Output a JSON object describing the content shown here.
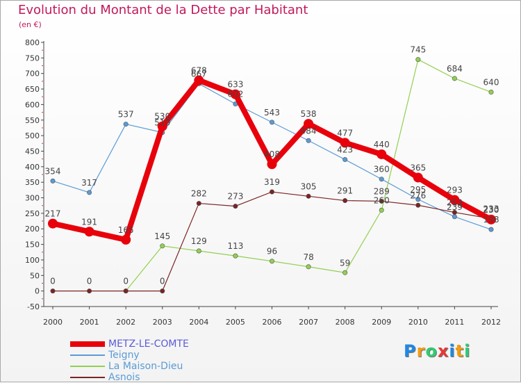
{
  "title": "Evolution du Montant de la Dette par Habitant",
  "subtitle": "(en €)",
  "logo": {
    "text": "Proxiti",
    "letters": [
      {
        "ch": "P",
        "color": "#1e88e5"
      },
      {
        "ch": "r",
        "color": "#f39c12"
      },
      {
        "ch": "o",
        "color": "#2ecc71"
      },
      {
        "ch": "x",
        "color": "#e53935"
      },
      {
        "ch": "i",
        "color": "#1e88e5"
      },
      {
        "ch": "t",
        "color": "#f39c12"
      },
      {
        "ch": "i",
        "color": "#2ecc71"
      }
    ]
  },
  "chart_data": {
    "type": "line",
    "title": "Evolution du Montant de la Dette par Habitant",
    "ylabel": "(en €)",
    "xlabel": "",
    "categories": [
      "2000",
      "2001",
      "2002",
      "2003",
      "2004",
      "2005",
      "2006",
      "2007",
      "2008",
      "2009",
      "2010",
      "2011",
      "2012"
    ],
    "ylim": [
      -50,
      800
    ],
    "ytick_step": 50,
    "grid": false,
    "legend_position": "bottom-left",
    "series": [
      {
        "name": "METZ-LE-COMTE",
        "color": "#e8000b",
        "emphasis": true,
        "values": [
          217,
          191,
          165,
          530,
          678,
          633,
          408,
          538,
          477,
          440,
          365,
          293,
          230
        ],
        "labels": [
          "217",
          "191",
          "165",
          "530",
          "678",
          "633",
          "408",
          "538",
          "477",
          "440",
          "365",
          "293",
          "230"
        ]
      },
      {
        "name": "Teigny",
        "color": "#5b9bd5",
        "values": [
          354,
          317,
          537,
          510,
          667,
          602,
          543,
          484,
          423,
          360,
          295,
          239,
          198
        ],
        "labels": [
          "354",
          "317",
          "537",
          "510",
          "667",
          "602",
          "543",
          "484",
          "423",
          "360",
          "295",
          "239",
          "198"
        ]
      },
      {
        "name": "La Maison-Dieu",
        "color": "#92d050",
        "values": [
          null,
          null,
          0,
          145,
          129,
          113,
          96,
          78,
          59,
          260,
          745,
          684,
          640
        ],
        "labels": [
          "",
          "",
          "",
          "145",
          "129",
          "113",
          "96",
          "78",
          "59",
          "260",
          "745",
          "684",
          "640"
        ]
      },
      {
        "name": "Asnois",
        "color": "#7b2323",
        "values": [
          0,
          0,
          0,
          0,
          282,
          273,
          319,
          305,
          291,
          289,
          276,
          253,
          233
        ],
        "labels": [
          "0",
          "0",
          "0",
          "0",
          "282",
          "273",
          "319",
          "305",
          "291",
          "289",
          "276",
          "253",
          "233"
        ]
      }
    ]
  }
}
